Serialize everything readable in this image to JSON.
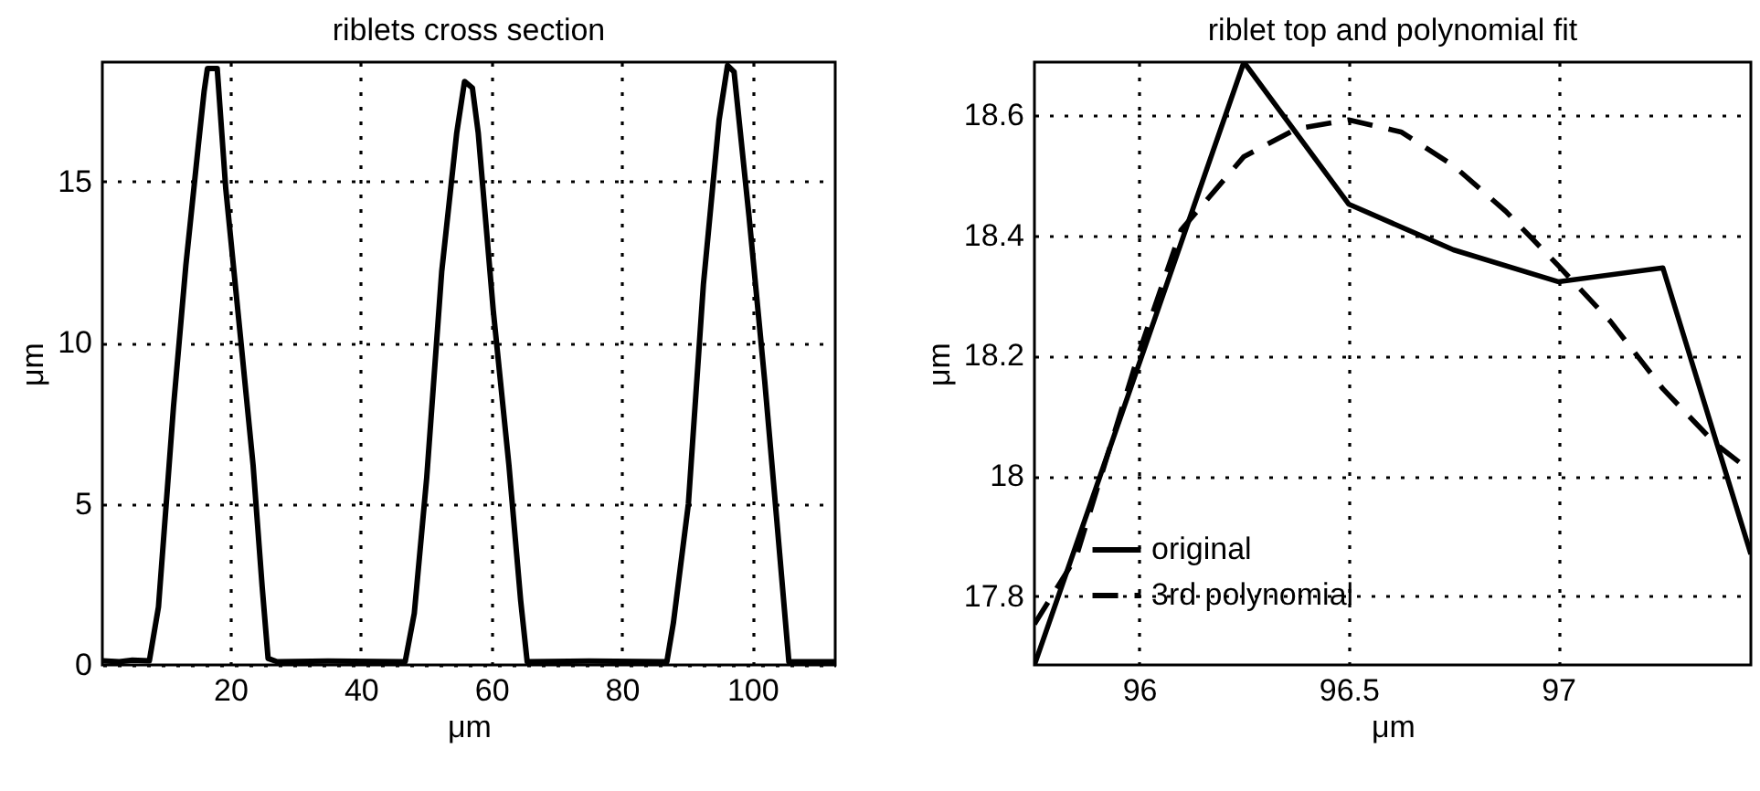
{
  "chart_data": [
    {
      "type": "line",
      "title": "riblets cross section",
      "xlabel": "μm",
      "ylabel": "μm",
      "xlim": [
        0.4,
        112.7
      ],
      "ylim": [
        0,
        18.7
      ],
      "xticks": [
        20,
        40,
        60,
        80,
        100
      ],
      "yticks": [
        0,
        5,
        10,
        15
      ],
      "grid": true,
      "line_style": "solid",
      "marker": "none",
      "x": [
        0.5,
        3,
        5,
        7.6,
        9,
        11.3,
        13.2,
        15.1,
        16,
        16.5,
        17.4,
        18,
        19.3,
        21.6,
        23.5,
        24.9,
        25.8,
        27.2,
        35,
        46.8,
        48.2,
        50.1,
        52.4,
        54.7,
        55.9,
        57.1,
        58,
        60.3,
        62.7,
        64.5,
        65.5,
        75,
        86.9,
        87.9,
        90.2,
        92.5,
        94.9,
        96.2,
        97.2,
        99.5,
        101.9,
        103.7,
        105.6,
        112.6
      ],
      "series": [
        {
          "color": "#000000",
          "values": [
            0.13,
            0.1,
            0.15,
            0.13,
            1.8,
            8.0,
            12.4,
            16.1,
            17.8,
            18.5,
            18.5,
            18.5,
            14.8,
            10.1,
            6.2,
            2.4,
            0.2,
            0.1,
            0.12,
            0.1,
            1.6,
            5.8,
            12.2,
            16.5,
            18.1,
            17.9,
            16.5,
            11.0,
            6.2,
            2.0,
            0.1,
            0.12,
            0.1,
            1.3,
            5.0,
            11.8,
            16.9,
            18.6,
            18.4,
            13.9,
            8.8,
            4.6,
            0.1,
            0.1
          ]
        }
      ]
    },
    {
      "type": "line",
      "title": "riblet top and polynomial fit",
      "xlabel": "μm",
      "ylabel": "μm",
      "xlim": [
        95.75,
        97.46
      ],
      "ylim": [
        17.686,
        18.688
      ],
      "xticks": [
        96,
        96.5,
        97
      ],
      "yticks": [
        17.8,
        18,
        18.2,
        18.4,
        18.6
      ],
      "grid": true,
      "legend": "bottom left",
      "marker": "none",
      "series": [
        {
          "name": "original",
          "color": "#000000",
          "line_style": "solid",
          "x": [
            95.75,
            96.25,
            96.5,
            96.75,
            97,
            97.25,
            97.46
          ],
          "values": [
            17.686,
            18.688,
            18.452,
            18.376,
            18.323,
            18.346,
            17.87
          ]
        },
        {
          "name": "3rd polynomial",
          "color": "#000000",
          "line_style": "dashed",
          "x": [
            95.75,
            95.85,
            96,
            96.1,
            96.25,
            96.375,
            96.5,
            96.625,
            96.75,
            96.875,
            97,
            97.125,
            97.25,
            97.375,
            97.46
          ],
          "values": [
            17.754,
            17.866,
            18.206,
            18.409,
            18.531,
            18.577,
            18.592,
            18.572,
            18.516,
            18.44,
            18.35,
            18.257,
            18.145,
            18.054,
            18.008
          ]
        }
      ]
    }
  ]
}
